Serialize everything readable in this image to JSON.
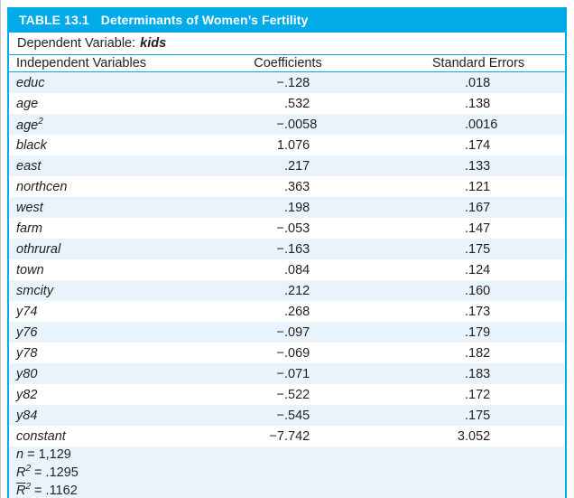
{
  "table": {
    "label": "TABLE 13.1",
    "title": "Determinants of Women’s Fertility",
    "dependent_variable_prefix": "Dependent Variable:",
    "dependent_variable": "kids",
    "columns": [
      "Independent Variables",
      "Coefficients",
      "Standard Errors"
    ],
    "rows": [
      {
        "variable": "educ",
        "sup": "",
        "coefficient": "−.128",
        "standard_error": ".018"
      },
      {
        "variable": "age",
        "sup": "",
        "coefficient": ".532",
        "standard_error": ".138"
      },
      {
        "variable": "age",
        "sup": "2",
        "coefficient": "−.0058",
        "standard_error": ".0016"
      },
      {
        "variable": "black",
        "sup": "",
        "coefficient": "1.076",
        "standard_error": ".174"
      },
      {
        "variable": "east",
        "sup": "",
        "coefficient": ".217",
        "standard_error": ".133"
      },
      {
        "variable": "northcen",
        "sup": "",
        "coefficient": ".363",
        "standard_error": ".121"
      },
      {
        "variable": "west",
        "sup": "",
        "coefficient": ".198",
        "standard_error": ".167"
      },
      {
        "variable": "farm",
        "sup": "",
        "coefficient": "−.053",
        "standard_error": ".147"
      },
      {
        "variable": "othrural",
        "sup": "",
        "coefficient": "−.163",
        "standard_error": ".175"
      },
      {
        "variable": "town",
        "sup": "",
        "coefficient": ".084",
        "standard_error": ".124"
      },
      {
        "variable": "smcity",
        "sup": "",
        "coefficient": ".212",
        "standard_error": ".160"
      },
      {
        "variable": "y74",
        "sup": "",
        "coefficient": ".268",
        "standard_error": ".173"
      },
      {
        "variable": "y76",
        "sup": "",
        "coefficient": "−.097",
        "standard_error": ".179"
      },
      {
        "variable": "y78",
        "sup": "",
        "coefficient": "−.069",
        "standard_error": ".182"
      },
      {
        "variable": "y80",
        "sup": "",
        "coefficient": "−.071",
        "standard_error": ".183"
      },
      {
        "variable": "y82",
        "sup": "",
        "coefficient": "−.522",
        "standard_error": ".172"
      },
      {
        "variable": "y84",
        "sup": "",
        "coefficient": "−.545",
        "standard_error": ".175"
      },
      {
        "variable": "constant",
        "sup": "",
        "coefficient": "−7.742",
        "standard_error": "3.052"
      }
    ],
    "stats": {
      "n": {
        "symbol": "n",
        "sup": "",
        "value": "= 1,129"
      },
      "r_squared": {
        "symbol": "R",
        "sup": "2",
        "value": "= .1295"
      },
      "adj_r_squared": {
        "symbol": "R",
        "sup": "2",
        "value": "= .1162"
      }
    }
  },
  "colors": {
    "accent": "#00ABE8",
    "row_stripe": "#E8F3FB",
    "text": "#231F20"
  }
}
